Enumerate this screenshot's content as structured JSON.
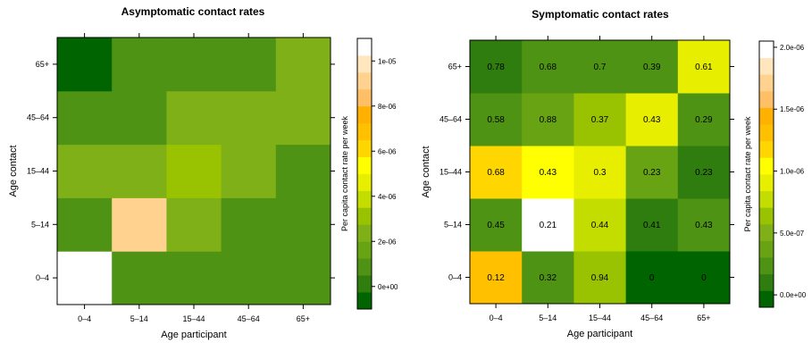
{
  "palette": [
    "#006400",
    "#2E7D0E",
    "#4E9313",
    "#68A314",
    "#80B017",
    "#99C200",
    "#C4DD00",
    "#E7EE00",
    "#FFFF00",
    "#FFD600",
    "#FFC000",
    "#FFB000",
    "#FFBF67",
    "#FFD28F",
    "#FFE6BD",
    "#FFFFFF"
  ],
  "chart_data": [
    {
      "type": "heatmap",
      "title": "Asymptomatic contact rates",
      "xlabel": "Age participant",
      "ylabel": "Age contact",
      "categories": [
        "0–4",
        "5–14",
        "15–44",
        "45–64",
        "65+"
      ],
      "y_categories": [
        "0–4",
        "5–14",
        "15–44",
        "45–64",
        "65+"
      ],
      "colorbar": {
        "label": "Per capita contact rate per week",
        "min": -1e-06,
        "max": 1.1e-05,
        "ticks": [
          "0e+00",
          "2e-06",
          "4e-06",
          "6e-06",
          "8e-06",
          "1e-05"
        ],
        "tick_values": [
          0,
          2e-06,
          4e-06,
          6e-06,
          8e-06,
          1e-05
        ]
      },
      "values": [
        [
          1.1e-05,
          8e-07,
          8e-07,
          8e-07,
          8e-07
        ],
        [
          8e-07,
          8.8e-06,
          2e-06,
          8e-07,
          8e-07
        ],
        [
          2e-06,
          2e-06,
          3e-06,
          2e-06,
          8e-07
        ],
        [
          1.2e-06,
          1.2e-06,
          2e-06,
          2e-06,
          2e-06
        ],
        [
          -5e-07,
          1.2e-06,
          1.2e-06,
          1.2e-06,
          2e-06
        ]
      ],
      "labels": null
    },
    {
      "type": "heatmap",
      "title": "Symptomatic contact rates",
      "xlabel": "Age participant",
      "ylabel": "Age contact",
      "categories": [
        "0–4",
        "5–14",
        "15–44",
        "45–64",
        "65+"
      ],
      "y_categories": [
        "0–4",
        "5–14",
        "15–44",
        "45–64",
        "65+"
      ],
      "colorbar": {
        "label": "Per capita contact rate per week",
        "min": -1e-07,
        "max": 2.05e-06,
        "ticks": [
          "0.0e+00",
          "5.0e-07",
          "1.0e-06",
          "1.5e-06",
          "2.0e-06"
        ],
        "tick_values": [
          0,
          5e-07,
          1e-06,
          1.5e-06,
          2e-06
        ]
      },
      "values": [
        [
          1.35e-06,
          2e-07,
          7e-07,
          -5e-08,
          -5e-08
        ],
        [
          3e-07,
          2.05e-06,
          7.8e-07,
          6e-08,
          3e-07
        ],
        [
          1.15e-06,
          1.1e-06,
          8.5e-07,
          4e-07,
          6e-08
        ],
        [
          3e-07,
          3.5e-07,
          5.8e-07,
          8.5e-07,
          2.5e-07
        ],
        [
          1e-07,
          2.5e-07,
          3e-07,
          3e-07,
          8.5e-07
        ]
      ],
      "labels": [
        [
          "0.12",
          "0.32",
          "0.94",
          "0",
          "0"
        ],
        [
          "0.45",
          "0.21",
          "0.44",
          "0.41",
          "0.43"
        ],
        [
          "0.68",
          "0.43",
          "0.3",
          "0.23",
          "0.23"
        ],
        [
          "0.58",
          "0.88",
          "0.37",
          "0.43",
          "0.29"
        ],
        [
          "0.78",
          "0.68",
          "0.7",
          "0.39",
          "0.61"
        ]
      ]
    }
  ]
}
